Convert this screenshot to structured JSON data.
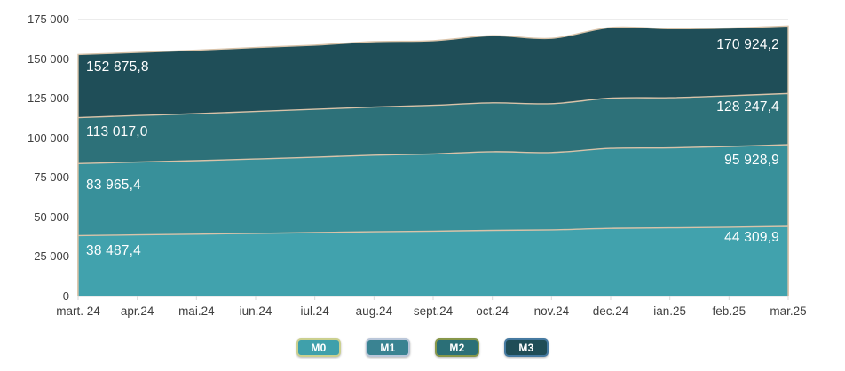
{
  "chart_data": {
    "type": "area",
    "mode": "overlapping",
    "title": "",
    "xlabel": "",
    "ylabel": "",
    "ylim": [
      0,
      175000
    ],
    "grid": "top-gridline-only",
    "legend_position": "bottom",
    "outline_color": "#d9c3a9",
    "x_categories": [
      "mart. 24",
      "apr.24",
      "mai.24",
      "iun.24",
      "iul.24",
      "aug.24",
      "sept.24",
      "oct.24",
      "nov.24",
      "dec.24",
      "ian.25",
      "feb.25",
      "mar.25"
    ],
    "y_ticks": [
      {
        "label": "175 000",
        "value": 175000
      },
      {
        "label": "150 000",
        "value": 150000
      },
      {
        "label": "125 000",
        "value": 125000
      },
      {
        "label": "100 000",
        "value": 100000
      },
      {
        "label": "75 000",
        "value": 75000
      },
      {
        "label": "50 000",
        "value": 50000
      },
      {
        "label": "25 000",
        "value": 25000
      },
      {
        "label": "0",
        "value": 0
      }
    ],
    "series": [
      {
        "name": "M3",
        "color": "#1f4e58",
        "values": [
          152875.8,
          154200,
          155600,
          157300,
          158800,
          161000,
          161600,
          164800,
          163100,
          170000,
          169200,
          169600,
          170924.2
        ],
        "first_value": 152875.8,
        "last_value": 170924.2,
        "first_label": "152 875,8",
        "last_label": "170 924,2"
      },
      {
        "name": "M2",
        "color": "#2d7179",
        "values": [
          113017.0,
          114300,
          115500,
          116900,
          118300,
          119700,
          120800,
          122400,
          121800,
          125300,
          125600,
          126800,
          128247.4
        ],
        "first_value": 113017.0,
        "last_value": 128247.4,
        "first_label": "113 017,0",
        "last_label": "128 247,4"
      },
      {
        "name": "M1",
        "color": "#38909a",
        "values": [
          83965.4,
          84900,
          85800,
          86900,
          88000,
          89300,
          90100,
          91500,
          91000,
          93600,
          93900,
          94800,
          95928.9
        ],
        "first_value": 83965.4,
        "last_value": 95928.9,
        "first_label": "83 965,4",
        "last_label": "95 928,9"
      },
      {
        "name": "M0",
        "color": "#41a2ad",
        "values": [
          38487.4,
          38900,
          39400,
          39900,
          40400,
          40900,
          41300,
          41800,
          42100,
          43100,
          43400,
          43800,
          44309.9
        ],
        "first_value": 38487.4,
        "last_value": 44309.9,
        "first_label": "38 487,4",
        "last_label": "44 309,9"
      }
    ]
  },
  "legend": {
    "items": [
      {
        "label": "M0",
        "fill": "#3fa0ab",
        "border": "#cbd08f"
      },
      {
        "label": "M1",
        "fill": "#3a8392",
        "border": "#bac7da"
      },
      {
        "label": "M2",
        "fill": "#2b6f77",
        "border": "#87974a"
      },
      {
        "label": "M3",
        "fill": "#204d57",
        "border": "#467aa1"
      }
    ]
  },
  "axis": {
    "text_color": "#404040",
    "line_color": "#d9d9d9"
  }
}
